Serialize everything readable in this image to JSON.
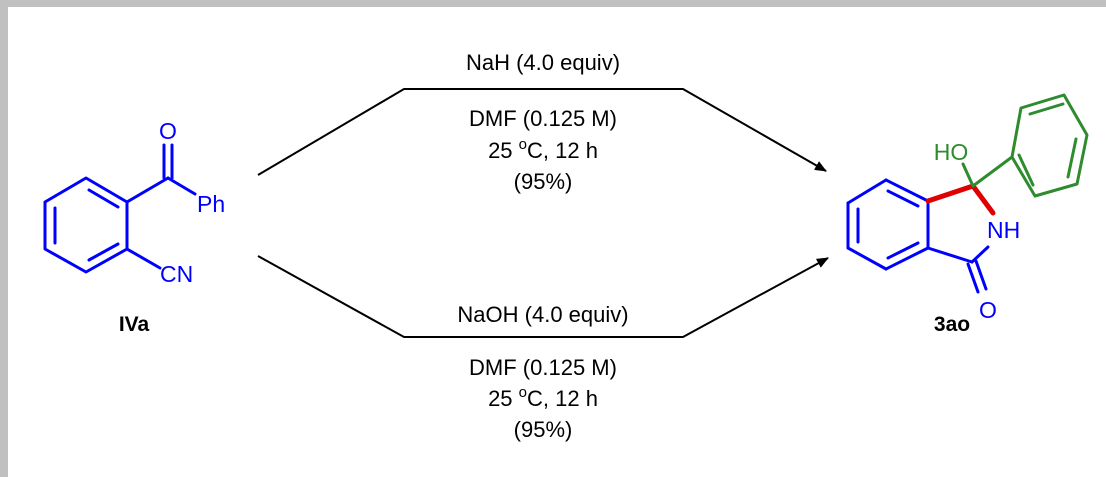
{
  "scheme": {
    "colors": {
      "substrate": "#0000ff",
      "aryl": "#2e8b2e",
      "new_bond": "#e00000",
      "text": "#000000",
      "frame": "#c0c0c0"
    },
    "starting_material": {
      "label": "IVa",
      "atoms": {
        "oxygen": "O",
        "phenyl": "Ph",
        "nitrile": "CN"
      }
    },
    "product": {
      "label": "3ao",
      "atoms": {
        "hydroxyl": "HO",
        "amide_nh": "NH",
        "carbonyl_o": "O"
      }
    },
    "top_conditions": {
      "reagent": "NaH (4.0 equiv)",
      "solvent": "DMF (0.125 M)",
      "temp_pre": "25 ",
      "temp_deg": "o",
      "temp_post": "C, 12 h",
      "yield": "(95%)"
    },
    "bottom_conditions": {
      "reagent": "NaOH (4.0 equiv)",
      "solvent": "DMF (0.125 M)",
      "temp_pre": "25 ",
      "temp_deg": "o",
      "temp_post": "C, 12 h",
      "yield": "(95%)"
    }
  }
}
